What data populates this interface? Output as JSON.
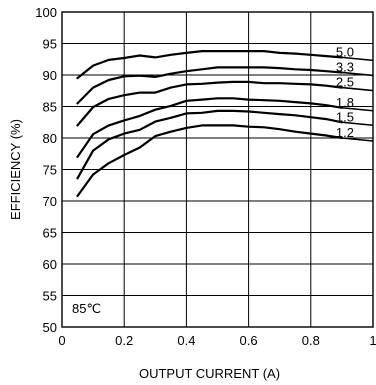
{
  "chart_data": {
    "type": "line",
    "title": "",
    "xlabel": "OUTPUT CURRENT (A)",
    "ylabel": "EFFICIENCY (%)",
    "xlim": [
      0,
      1
    ],
    "ylim": [
      50,
      100
    ],
    "x_ticks": [
      "0",
      "0.2",
      "0.4",
      "0.6",
      "0.8",
      "1"
    ],
    "y_ticks": [
      "50",
      "55",
      "60",
      "65",
      "70",
      "75",
      "80",
      "85",
      "90",
      "95",
      "100"
    ],
    "grid": true,
    "annotation": "85℃",
    "series": [
      {
        "name": "5.0",
        "x": [
          0.05,
          0.1,
          0.15,
          0.2,
          0.25,
          0.3,
          0.35,
          0.4,
          0.45,
          0.5,
          0.55,
          0.6,
          0.65,
          0.7,
          0.75,
          0.8,
          0.85,
          0.9
        ],
        "y": [
          89.5,
          91.5,
          92.4,
          92.7,
          93.1,
          92.8,
          93.2,
          93.5,
          93.8,
          93.8,
          93.8,
          93.8,
          93.8,
          93.5,
          93.4,
          93.2,
          93.0,
          92.8
        ]
      },
      {
        "name": "3.3",
        "x": [
          0.05,
          0.1,
          0.15,
          0.2,
          0.25,
          0.3,
          0.35,
          0.4,
          0.45,
          0.5,
          0.55,
          0.6,
          0.65,
          0.7,
          0.75,
          0.8,
          0.85,
          0.9
        ],
        "y": [
          85.5,
          88.0,
          89.2,
          89.8,
          89.9,
          89.7,
          90.2,
          90.6,
          90.9,
          91.2,
          91.2,
          91.2,
          91.2,
          91.1,
          90.9,
          90.8,
          90.6,
          90.4
        ]
      },
      {
        "name": "2.5",
        "x": [
          0.05,
          0.1,
          0.15,
          0.2,
          0.25,
          0.3,
          0.35,
          0.4,
          0.45,
          0.5,
          0.55,
          0.6,
          0.65,
          0.7,
          0.75,
          0.8,
          0.85,
          0.9
        ],
        "y": [
          82.0,
          84.9,
          86.2,
          86.8,
          87.2,
          87.2,
          88.0,
          88.5,
          88.6,
          88.8,
          88.9,
          88.9,
          88.7,
          88.7,
          88.6,
          88.5,
          88.3,
          88.0
        ]
      },
      {
        "name": "1.8",
        "x": [
          0.05,
          0.1,
          0.15,
          0.2,
          0.25,
          0.3,
          0.35,
          0.4,
          0.45,
          0.5,
          0.55,
          0.6,
          0.65,
          0.7,
          0.75,
          0.8,
          0.85,
          0.9
        ],
        "y": [
          77.0,
          80.6,
          82.0,
          82.8,
          83.5,
          84.5,
          85.1,
          85.9,
          86.1,
          86.3,
          86.3,
          86.1,
          86.0,
          85.9,
          85.7,
          85.5,
          85.2,
          84.8
        ]
      },
      {
        "name": "1.5",
        "x": [
          0.05,
          0.1,
          0.15,
          0.2,
          0.25,
          0.3,
          0.35,
          0.4,
          0.45,
          0.5,
          0.55,
          0.6,
          0.65,
          0.7,
          0.75,
          0.8,
          0.85,
          0.9
        ],
        "y": [
          73.6,
          78.0,
          79.8,
          80.7,
          81.3,
          82.6,
          83.2,
          83.9,
          84.0,
          84.3,
          84.3,
          84.2,
          84.0,
          83.8,
          83.6,
          83.3,
          83.0,
          82.5
        ]
      },
      {
        "name": "1.2",
        "x": [
          0.05,
          0.1,
          0.15,
          0.2,
          0.25,
          0.3,
          0.35,
          0.4,
          0.45,
          0.5,
          0.55,
          0.6,
          0.65,
          0.7,
          0.75,
          0.8,
          0.85,
          0.9
        ],
        "y": [
          70.8,
          74.2,
          76.0,
          77.3,
          78.5,
          80.3,
          81.0,
          81.6,
          82.0,
          82.0,
          82.0,
          81.8,
          81.7,
          81.4,
          81.0,
          80.7,
          80.4,
          80.0
        ]
      }
    ]
  }
}
